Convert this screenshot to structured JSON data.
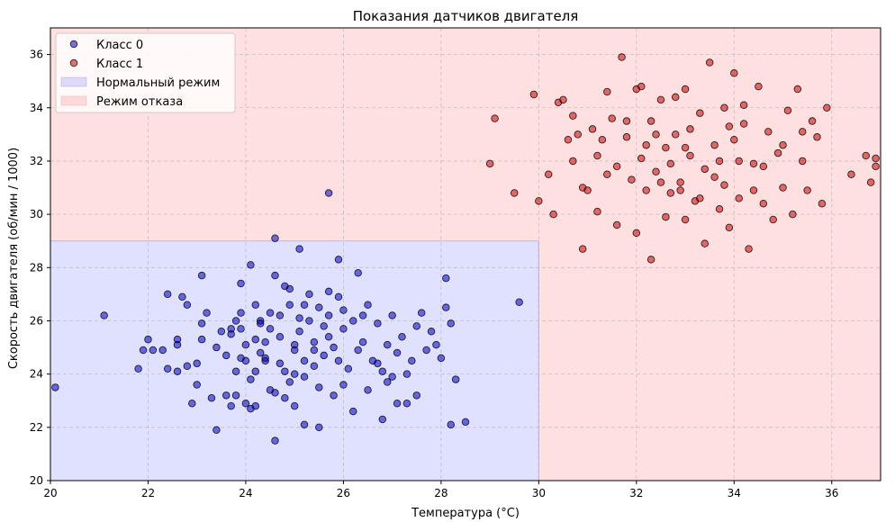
{
  "chart_data": {
    "type": "scatter",
    "title": "Показания датчиков двигателя",
    "xlabel": "Температура (°C)",
    "ylabel": "Скорость двигателя (об/мин / 1000)",
    "xlim": [
      20,
      37
    ],
    "ylim": [
      20,
      37
    ],
    "x_ticks": [
      20,
      22,
      24,
      26,
      28,
      30,
      32,
      34,
      36
    ],
    "y_ticks": [
      20,
      22,
      24,
      26,
      28,
      30,
      32,
      34,
      36
    ],
    "grid": true,
    "legend_position": "top-left",
    "regions": [
      {
        "name": "Нормальный режим",
        "x": [
          20,
          30
        ],
        "y": [
          20,
          29
        ],
        "color": "#0000ff",
        "opacity": 0.12
      },
      {
        "name": "Режим отказа",
        "x": [
          20,
          37
        ],
        "y": [
          20,
          37
        ],
        "color": "#ff0000",
        "opacity": 0.12,
        "excludes": "Нормальный режим"
      }
    ],
    "series": [
      {
        "name": "Класс 0",
        "color": "#0000cc",
        "points": [
          [
            20.1,
            23.5
          ],
          [
            21.1,
            26.2
          ],
          [
            21.8,
            24.2
          ],
          [
            21.9,
            24.9
          ],
          [
            22.0,
            25.3
          ],
          [
            22.1,
            24.9
          ],
          [
            22.4,
            24.2
          ],
          [
            22.4,
            27.0
          ],
          [
            22.6,
            25.3
          ],
          [
            22.6,
            24.1
          ],
          [
            22.7,
            26.9
          ],
          [
            22.8,
            24.3
          ],
          [
            22.8,
            26.6
          ],
          [
            22.9,
            22.9
          ],
          [
            23.0,
            23.6
          ],
          [
            23.0,
            24.4
          ],
          [
            23.1,
            25.3
          ],
          [
            23.1,
            25.9
          ],
          [
            23.1,
            27.7
          ],
          [
            23.2,
            26.3
          ],
          [
            23.3,
            23.1
          ],
          [
            23.4,
            21.9
          ],
          [
            23.4,
            25.0
          ],
          [
            23.5,
            25.6
          ],
          [
            23.6,
            23.2
          ],
          [
            23.6,
            24.7
          ],
          [
            23.7,
            25.5
          ],
          [
            23.7,
            25.7
          ],
          [
            23.8,
            24.1
          ],
          [
            23.8,
            26.0
          ],
          [
            23.8,
            23.2
          ],
          [
            23.9,
            27.4
          ],
          [
            23.9,
            26.3
          ],
          [
            23.9,
            25.7
          ],
          [
            24.0,
            22.9
          ],
          [
            24.0,
            24.5
          ],
          [
            24.0,
            25.1
          ],
          [
            24.1,
            28.1
          ],
          [
            24.1,
            22.7
          ],
          [
            24.2,
            24.1
          ],
          [
            24.2,
            25.3
          ],
          [
            24.2,
            22.8
          ],
          [
            24.3,
            24.8
          ],
          [
            24.3,
            26.0
          ],
          [
            24.4,
            24.5
          ],
          [
            24.4,
            25.2
          ],
          [
            24.5,
            26.3
          ],
          [
            24.5,
            23.4
          ],
          [
            24.6,
            27.7
          ],
          [
            24.6,
            23.3
          ],
          [
            24.7,
            26.2
          ],
          [
            24.7,
            25.4
          ],
          [
            24.8,
            23.1
          ],
          [
            24.8,
            24.1
          ],
          [
            24.9,
            26.6
          ],
          [
            24.9,
            23.7
          ],
          [
            25.0,
            25.1
          ],
          [
            25.0,
            24.9
          ],
          [
            25.0,
            22.8
          ],
          [
            25.1,
            25.6
          ],
          [
            25.1,
            26.1
          ],
          [
            25.2,
            23.9
          ],
          [
            25.2,
            24.5
          ],
          [
            25.3,
            26.0
          ],
          [
            25.3,
            27.0
          ],
          [
            25.4,
            24.3
          ],
          [
            25.4,
            25.2
          ],
          [
            25.5,
            26.5
          ],
          [
            25.5,
            23.5
          ],
          [
            25.6,
            25.8
          ],
          [
            25.6,
            24.7
          ],
          [
            25.7,
            27.1
          ],
          [
            25.7,
            26.2
          ],
          [
            25.8,
            25.0
          ],
          [
            25.8,
            23.2
          ],
          [
            25.9,
            26.9
          ],
          [
            25.9,
            24.5
          ],
          [
            26.0,
            25.7
          ],
          [
            26.0,
            26.4
          ],
          [
            26.1,
            24.2
          ],
          [
            26.2,
            22.6
          ],
          [
            26.2,
            26.0
          ],
          [
            26.3,
            27.8
          ],
          [
            26.3,
            24.9
          ],
          [
            26.4,
            25.2
          ],
          [
            26.5,
            23.4
          ],
          [
            26.5,
            26.6
          ],
          [
            26.6,
            24.5
          ],
          [
            26.7,
            25.9
          ],
          [
            26.8,
            22.3
          ],
          [
            26.8,
            24.1
          ],
          [
            26.9,
            25.1
          ],
          [
            27.0,
            23.9
          ],
          [
            27.0,
            26.2
          ],
          [
            27.1,
            24.8
          ],
          [
            27.2,
            25.4
          ],
          [
            27.3,
            22.9
          ],
          [
            27.4,
            24.5
          ],
          [
            27.5,
            25.8
          ],
          [
            27.5,
            23.2
          ],
          [
            27.6,
            26.3
          ],
          [
            27.7,
            24.9
          ],
          [
            27.8,
            25.6
          ],
          [
            27.9,
            25.1
          ],
          [
            28.0,
            24.6
          ],
          [
            28.1,
            27.6
          ],
          [
            28.1,
            26.5
          ],
          [
            28.2,
            25.9
          ],
          [
            28.2,
            22.1
          ],
          [
            28.3,
            23.8
          ],
          [
            28.5,
            22.2
          ],
          [
            29.6,
            26.7
          ],
          [
            25.7,
            30.8
          ],
          [
            24.6,
            29.1
          ],
          [
            25.1,
            28.7
          ],
          [
            25.9,
            28.3
          ],
          [
            24.9,
            27.2
          ],
          [
            24.6,
            21.5
          ],
          [
            25.2,
            22.1
          ],
          [
            25.5,
            22.0
          ],
          [
            23.7,
            22.8
          ],
          [
            27.1,
            22.9
          ],
          [
            24.4,
            24.6
          ],
          [
            25.0,
            24.0
          ],
          [
            24.7,
            24.4
          ],
          [
            24.2,
            26.6
          ],
          [
            23.9,
            24.6
          ],
          [
            24.5,
            25.7
          ],
          [
            26.4,
            26.2
          ],
          [
            26.0,
            23.6
          ],
          [
            25.4,
            24.9
          ],
          [
            25.7,
            25.4
          ],
          [
            24.1,
            23.8
          ],
          [
            24.3,
            25.9
          ],
          [
            22.3,
            24.9
          ],
          [
            22.6,
            25.1
          ],
          [
            26.9,
            23.7
          ],
          [
            27.3,
            24.0
          ],
          [
            25.2,
            26.6
          ],
          [
            24.8,
            27.3
          ],
          [
            26.7,
            24.4
          ]
        ]
      },
      {
        "name": "Класс 1",
        "color": "#cc0000",
        "points": [
          [
            29.0,
            31.9
          ],
          [
            29.1,
            33.6
          ],
          [
            29.5,
            30.8
          ],
          [
            29.9,
            34.5
          ],
          [
            30.0,
            30.5
          ],
          [
            30.2,
            31.5
          ],
          [
            30.3,
            30.0
          ],
          [
            30.4,
            34.2
          ],
          [
            30.5,
            34.3
          ],
          [
            30.6,
            32.8
          ],
          [
            30.7,
            32.0
          ],
          [
            30.8,
            33.0
          ],
          [
            30.9,
            31.0
          ],
          [
            30.9,
            28.7
          ],
          [
            31.0,
            30.9
          ],
          [
            31.1,
            33.2
          ],
          [
            31.2,
            30.1
          ],
          [
            31.3,
            32.8
          ],
          [
            31.4,
            34.6
          ],
          [
            31.5,
            33.6
          ],
          [
            31.6,
            31.8
          ],
          [
            31.6,
            29.6
          ],
          [
            31.7,
            35.9
          ],
          [
            31.8,
            32.9
          ],
          [
            31.9,
            31.3
          ],
          [
            32.0,
            29.3
          ],
          [
            32.0,
            34.7
          ],
          [
            32.1,
            32.1
          ],
          [
            32.2,
            30.9
          ],
          [
            32.3,
            33.5
          ],
          [
            32.3,
            28.3
          ],
          [
            32.4,
            31.6
          ],
          [
            32.5,
            34.3
          ],
          [
            32.6,
            29.9
          ],
          [
            32.6,
            32.5
          ],
          [
            32.7,
            30.8
          ],
          [
            32.8,
            33.0
          ],
          [
            32.9,
            31.2
          ],
          [
            33.0,
            29.8
          ],
          [
            33.0,
            34.7
          ],
          [
            33.1,
            32.2
          ],
          [
            33.2,
            30.5
          ],
          [
            33.3,
            33.8
          ],
          [
            33.4,
            31.7
          ],
          [
            33.4,
            28.9
          ],
          [
            33.5,
            35.7
          ],
          [
            33.6,
            32.6
          ],
          [
            33.7,
            30.2
          ],
          [
            33.8,
            34.0
          ],
          [
            33.8,
            31.1
          ],
          [
            33.9,
            29.5
          ],
          [
            34.0,
            35.3
          ],
          [
            34.0,
            32.8
          ],
          [
            34.1,
            30.6
          ],
          [
            34.2,
            33.4
          ],
          [
            34.3,
            28.7
          ],
          [
            34.4,
            31.9
          ],
          [
            34.5,
            34.8
          ],
          [
            34.6,
            30.4
          ],
          [
            34.7,
            33.1
          ],
          [
            34.8,
            29.8
          ],
          [
            34.9,
            32.3
          ],
          [
            35.0,
            31.0
          ],
          [
            35.1,
            33.9
          ],
          [
            35.2,
            30.0
          ],
          [
            35.3,
            34.7
          ],
          [
            35.4,
            32.0
          ],
          [
            35.5,
            30.9
          ],
          [
            35.6,
            33.5
          ],
          [
            35.7,
            32.9
          ],
          [
            35.8,
            30.4
          ],
          [
            35.9,
            34.0
          ],
          [
            36.4,
            31.5
          ],
          [
            36.7,
            32.2
          ],
          [
            36.8,
            31.2
          ],
          [
            36.9,
            31.8
          ],
          [
            36.9,
            32.1
          ],
          [
            32.1,
            34.8
          ],
          [
            32.4,
            33.0
          ],
          [
            32.7,
            31.9
          ],
          [
            33.1,
            33.2
          ],
          [
            33.3,
            30.6
          ],
          [
            33.6,
            31.4
          ],
          [
            33.9,
            33.3
          ],
          [
            34.1,
            32.0
          ],
          [
            34.4,
            30.9
          ],
          [
            32.5,
            31.2
          ],
          [
            31.8,
            33.5
          ],
          [
            33.0,
            32.5
          ],
          [
            32.2,
            32.6
          ],
          [
            31.4,
            31.5
          ],
          [
            34.6,
            31.8
          ],
          [
            35.0,
            32.6
          ],
          [
            32.9,
            30.9
          ],
          [
            33.7,
            32.0
          ],
          [
            31.2,
            32.2
          ],
          [
            30.7,
            33.7
          ],
          [
            32.8,
            34.4
          ],
          [
            34.2,
            34.1
          ],
          [
            35.4,
            33.1
          ]
        ]
      }
    ]
  }
}
